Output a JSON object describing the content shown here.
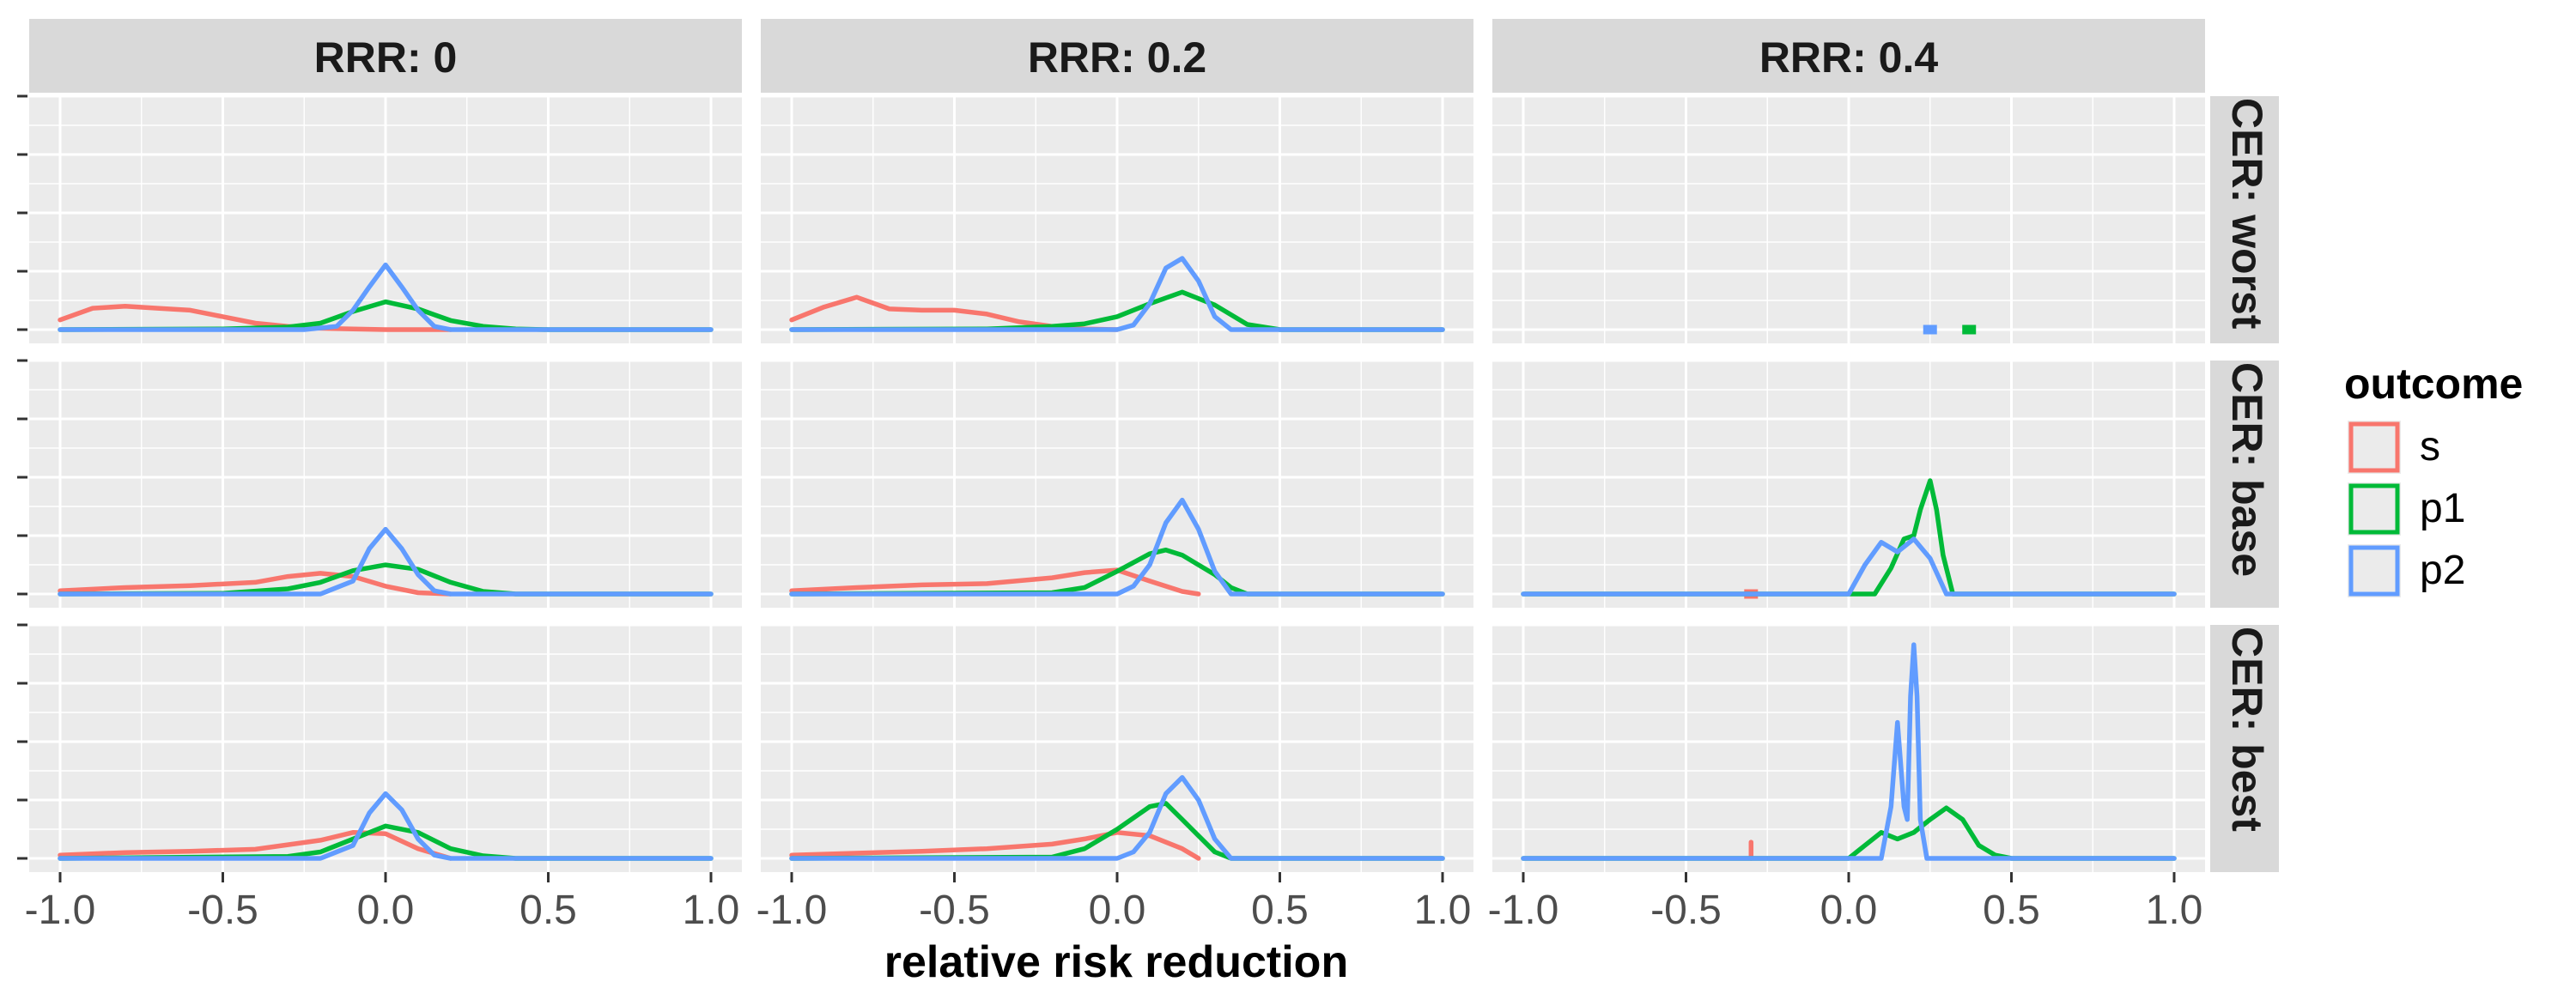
{
  "chart_data": {
    "type": "area",
    "kind": "density",
    "column_labels": [
      "RRR: 0",
      "RRR: 0.2",
      "RRR: 0.4"
    ],
    "row_labels": [
      "CER: worst",
      "CER: base",
      "CER: best"
    ],
    "xlabel": "relative risk reduction",
    "ylabel": "",
    "xlim": [
      -1.0,
      1.0
    ],
    "x_ticks": [
      -1.0,
      -0.5,
      0.0,
      0.5,
      1.0
    ],
    "x_tick_labels": [
      "-1.0",
      "-0.5",
      "0.0",
      "0.5",
      "1.0"
    ],
    "y_tick_count": 5,
    "grid": true,
    "legend": {
      "title": "outcome",
      "position": "right",
      "entries": [
        "s",
        "p1",
        "p2"
      ]
    },
    "colors": {
      "s": "#f8766d",
      "p1": "#00ba38",
      "p2": "#619cff"
    },
    "panel_background": "#ebebeb",
    "strip_background": "#d9d9d9",
    "panels": [
      {
        "row": 0,
        "col": 0,
        "series": [
          {
            "name": "s",
            "x": [
              -1.0,
              -0.9,
              -0.8,
              -0.7,
              -0.6,
              -0.5,
              -0.4,
              -0.3,
              -0.2,
              -0.1,
              0.0,
              0.1,
              0.2
            ],
            "y": [
              0.15,
              0.33,
              0.36,
              0.33,
              0.3,
              0.2,
              0.1,
              0.05,
              0.02,
              0.01,
              0,
              0,
              0
            ]
          },
          {
            "name": "p1",
            "x": [
              -1.0,
              -0.5,
              -0.3,
              -0.2,
              -0.1,
              0.0,
              0.1,
              0.2,
              0.3,
              0.4,
              0.5,
              1.0
            ],
            "y": [
              0,
              0.01,
              0.04,
              0.1,
              0.28,
              0.43,
              0.32,
              0.14,
              0.05,
              0.01,
              0,
              0
            ]
          },
          {
            "name": "p2",
            "x": [
              -1.0,
              -0.25,
              -0.15,
              -0.1,
              -0.05,
              0.0,
              0.05,
              0.1,
              0.15,
              0.2,
              1.0
            ],
            "y": [
              0,
              0,
              0.05,
              0.3,
              0.66,
              1.0,
              0.66,
              0.3,
              0.05,
              0,
              0
            ]
          }
        ]
      },
      {
        "row": 0,
        "col": 1,
        "series": [
          {
            "name": "s",
            "x": [
              -1.0,
              -0.9,
              -0.8,
              -0.7,
              -0.6,
              -0.5,
              -0.4,
              -0.3,
              -0.2,
              -0.1,
              0.0
            ],
            "y": [
              0.15,
              0.35,
              0.5,
              0.32,
              0.3,
              0.3,
              0.24,
              0.12,
              0.05,
              0.01,
              0
            ]
          },
          {
            "name": "p1",
            "x": [
              -1.0,
              -0.4,
              -0.2,
              -0.1,
              0.0,
              0.1,
              0.2,
              0.3,
              0.4,
              0.5,
              1.0
            ],
            "y": [
              0,
              0.01,
              0.05,
              0.09,
              0.2,
              0.4,
              0.58,
              0.38,
              0.08,
              0,
              0
            ]
          },
          {
            "name": "p2",
            "x": [
              -1.0,
              0.0,
              0.05,
              0.1,
              0.15,
              0.2,
              0.25,
              0.3,
              0.35,
              1.0
            ],
            "y": [
              0,
              0,
              0.07,
              0.4,
              0.95,
              1.1,
              0.75,
              0.2,
              0,
              0
            ]
          }
        ]
      },
      {
        "row": 0,
        "col": 2,
        "series": [
          {
            "name": "p2",
            "x": [
              0.25
            ],
            "y": [
              0
            ]
          },
          {
            "name": "p1",
            "x": [
              0.37
            ],
            "y": [
              0
            ]
          }
        ]
      },
      {
        "row": 1,
        "col": 0,
        "series": [
          {
            "name": "s",
            "x": [
              -1.0,
              -0.8,
              -0.6,
              -0.4,
              -0.3,
              -0.2,
              -0.1,
              0.0,
              0.1,
              0.2
            ],
            "y": [
              0.05,
              0.1,
              0.13,
              0.18,
              0.27,
              0.32,
              0.27,
              0.12,
              0.02,
              0
            ]
          },
          {
            "name": "p1",
            "x": [
              -1.0,
              -0.5,
              -0.3,
              -0.2,
              -0.1,
              0.0,
              0.1,
              0.2,
              0.3,
              0.4,
              1.0
            ],
            "y": [
              0,
              0.01,
              0.08,
              0.18,
              0.36,
              0.45,
              0.38,
              0.18,
              0.04,
              0,
              0
            ]
          },
          {
            "name": "p2",
            "x": [
              -1.0,
              -0.2,
              -0.1,
              -0.05,
              0.0,
              0.05,
              0.1,
              0.15,
              0.2,
              1.0
            ],
            "y": [
              0,
              0,
              0.2,
              0.7,
              1.0,
              0.7,
              0.3,
              0.05,
              0,
              0
            ]
          }
        ]
      },
      {
        "row": 1,
        "col": 1,
        "series": [
          {
            "name": "s",
            "x": [
              -1.0,
              -0.8,
              -0.6,
              -0.4,
              -0.2,
              -0.1,
              0.0,
              0.1,
              0.2,
              0.25
            ],
            "y": [
              0.05,
              0.1,
              0.14,
              0.16,
              0.25,
              0.33,
              0.37,
              0.2,
              0.04,
              0
            ]
          },
          {
            "name": "p1",
            "x": [
              -1.0,
              -0.2,
              -0.1,
              0.0,
              0.1,
              0.15,
              0.2,
              0.3,
              0.35,
              0.4,
              1.0
            ],
            "y": [
              0,
              0.02,
              0.1,
              0.35,
              0.62,
              0.68,
              0.6,
              0.3,
              0.1,
              0,
              0
            ]
          },
          {
            "name": "p2",
            "x": [
              -1.0,
              0.0,
              0.05,
              0.1,
              0.15,
              0.2,
              0.25,
              0.3,
              0.35,
              1.0
            ],
            "y": [
              0,
              0,
              0.12,
              0.45,
              1.1,
              1.45,
              1.0,
              0.35,
              0,
              0
            ]
          }
        ]
      },
      {
        "row": 1,
        "col": 2,
        "series": [
          {
            "name": "s",
            "x": [
              -0.3
            ],
            "y": [
              0
            ]
          },
          {
            "name": "p1",
            "x": [
              -1.0,
              0.08,
              0.13,
              0.17,
              0.2,
              0.22,
              0.25,
              0.27,
              0.29,
              0.32,
              1.0
            ],
            "y": [
              0,
              0,
              0.4,
              0.85,
              0.9,
              1.3,
              1.75,
              1.3,
              0.6,
              0,
              0
            ]
          },
          {
            "name": "p2",
            "x": [
              -1.0,
              0.0,
              0.05,
              0.1,
              0.15,
              0.2,
              0.25,
              0.3,
              1.0
            ],
            "y": [
              0,
              0,
              0.45,
              0.8,
              0.65,
              0.85,
              0.55,
              0,
              0
            ]
          }
        ]
      },
      {
        "row": 2,
        "col": 0,
        "series": [
          {
            "name": "s",
            "x": [
              -1.0,
              -0.8,
              -0.6,
              -0.4,
              -0.2,
              -0.1,
              0.0,
              0.1,
              0.2
            ],
            "y": [
              0.05,
              0.09,
              0.11,
              0.14,
              0.28,
              0.4,
              0.38,
              0.15,
              0
            ]
          },
          {
            "name": "p1",
            "x": [
              -1.0,
              -0.3,
              -0.2,
              -0.1,
              0.0,
              0.1,
              0.2,
              0.3,
              0.4,
              1.0
            ],
            "y": [
              0,
              0.03,
              0.1,
              0.3,
              0.5,
              0.4,
              0.15,
              0.04,
              0,
              0
            ]
          },
          {
            "name": "p2",
            "x": [
              -1.0,
              -0.2,
              -0.1,
              -0.05,
              0.0,
              0.05,
              0.1,
              0.15,
              0.2,
              1.0
            ],
            "y": [
              0,
              0,
              0.2,
              0.7,
              1.0,
              0.75,
              0.3,
              0.05,
              0,
              0
            ]
          }
        ]
      },
      {
        "row": 2,
        "col": 1,
        "series": [
          {
            "name": "s",
            "x": [
              -1.0,
              -0.6,
              -0.4,
              -0.2,
              -0.1,
              0.0,
              0.1,
              0.2,
              0.25
            ],
            "y": [
              0.05,
              0.11,
              0.15,
              0.22,
              0.3,
              0.4,
              0.35,
              0.15,
              0
            ]
          },
          {
            "name": "p1",
            "x": [
              -1.0,
              -0.2,
              -0.1,
              0.0,
              0.1,
              0.15,
              0.2,
              0.3,
              0.35,
              1.0
            ],
            "y": [
              0,
              0.02,
              0.15,
              0.45,
              0.8,
              0.85,
              0.6,
              0.1,
              0,
              0
            ]
          },
          {
            "name": "p2",
            "x": [
              -1.0,
              0.0,
              0.05,
              0.1,
              0.15,
              0.2,
              0.25,
              0.3,
              0.35,
              1.0
            ],
            "y": [
              0,
              0,
              0.1,
              0.4,
              1.0,
              1.25,
              0.9,
              0.3,
              0,
              0
            ]
          }
        ]
      },
      {
        "row": 2,
        "col": 2,
        "series": [
          {
            "name": "s",
            "x": [
              -0.3,
              -0.3
            ],
            "y": [
              0,
              0.25
            ]
          },
          {
            "name": "p1",
            "x": [
              -1.0,
              0.0,
              0.05,
              0.1,
              0.15,
              0.2,
              0.25,
              0.3,
              0.35,
              0.4,
              0.45,
              0.5,
              1.0
            ],
            "y": [
              0,
              0,
              0.2,
              0.4,
              0.3,
              0.4,
              0.6,
              0.78,
              0.6,
              0.2,
              0.05,
              0,
              0
            ]
          },
          {
            "name": "p2",
            "x": [
              -1.0,
              0.1,
              0.13,
              0.15,
              0.17,
              0.18,
              0.19,
              0.2,
              0.21,
              0.22,
              0.24,
              1.0
            ],
            "y": [
              0,
              0,
              0.8,
              2.1,
              0.8,
              0.6,
              2.5,
              3.3,
              2.5,
              0.6,
              0,
              0
            ]
          }
        ]
      }
    ]
  }
}
